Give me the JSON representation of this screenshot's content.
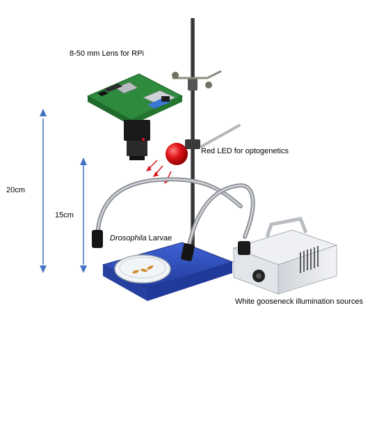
{
  "labels": {
    "lens": "8-50 mm  Lens for RPi",
    "led": "Red LED for optogenetics",
    "dim_outer": "20cm",
    "dim_inner": "15cm",
    "sample_italic": "Drosophila",
    "sample_rest": " Larvae",
    "illumination": "White gooseneck illumination sources"
  },
  "icons": {
    "pi": "raspberry-pi-board-icon",
    "camera": "camera-lens-icon",
    "led": "red-led-icon",
    "stand": "lab-stand-icon",
    "tray": "blue-stage-tray-icon",
    "dish": "petri-dish-icon",
    "gooseneck": "gooseneck-lamp-icon",
    "light_box": "light-source-box-icon"
  },
  "colors": {
    "arrow": "#4472c4",
    "led": "#e0141a",
    "tray": "#2f4fb8",
    "pcb": "#2e8b3d",
    "rod": "#444444",
    "box": "#e6e8ec"
  }
}
